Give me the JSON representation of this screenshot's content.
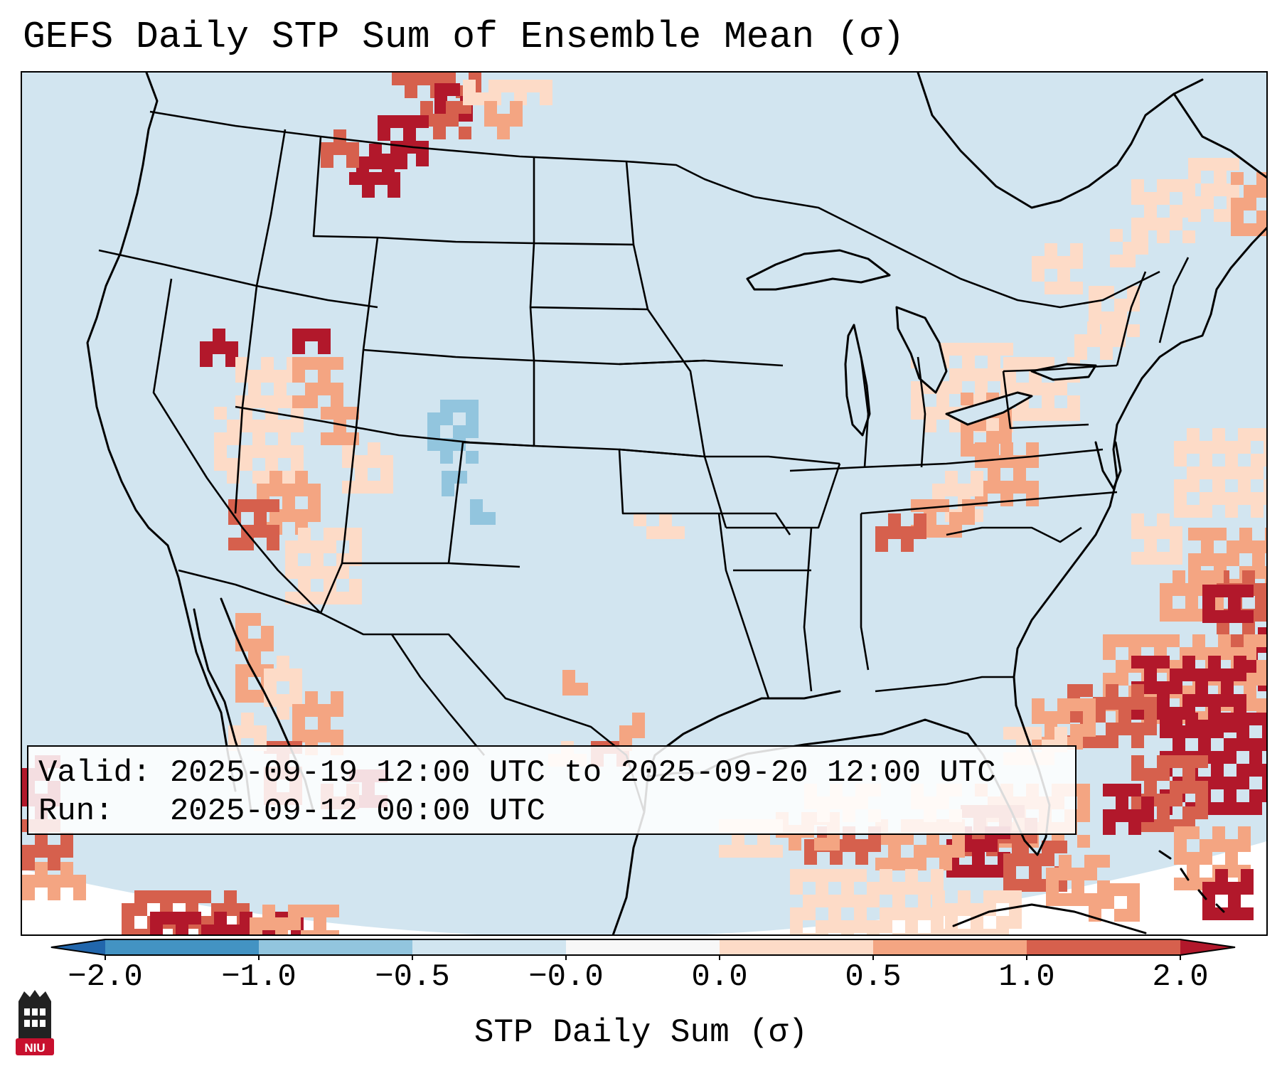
{
  "title": "GEFS Daily STP Sum of Ensemble Mean (σ)",
  "info": {
    "valid_line": "Valid: 2025-09-19 12:00 UTC to 2025-09-20 12:00 UTC",
    "run_line": "Run:   2025-09-12 00:00 UTC"
  },
  "colorbar": {
    "label": "STP Daily Sum (σ)",
    "ticks": [
      "−2.0",
      "−1.0",
      "−0.5",
      "−0.0",
      "0.0",
      "0.5",
      "1.0",
      "2.0"
    ],
    "colors": [
      "#4393c3",
      "#92c5de",
      "#d1e5f0",
      "#f7f7f7",
      "#fddbc7",
      "#f4a582",
      "#d6604d"
    ],
    "under_color": "#2166ac",
    "over_color": "#b2182b"
  },
  "map": {
    "background_color": "#d2e5f0",
    "region": "Contiguous United States, northern Mexico, southern Canada, Gulf of Mexico, western Atlantic"
  },
  "logo": {
    "text": "NIU",
    "color": "#c8102e"
  }
}
